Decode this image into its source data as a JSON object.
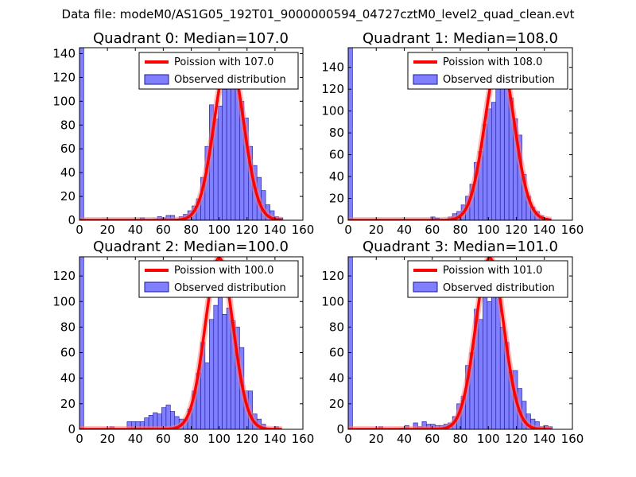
{
  "figure": {
    "suptitle": "Data file: modeM0/AS1G05_192T01_9000000594_04727cztM0_level2_quad_clean.evt",
    "colors": {
      "bar_fill": "#7f7fff",
      "bar_edge": "#1a1a99",
      "curve": "#ff0000",
      "curve_glow": "#ff8080",
      "axes": "#000000"
    }
  },
  "chart_data": [
    {
      "type": "bar+line",
      "title": "Quadrant 0: Median=107.0",
      "xlabel": "",
      "ylabel": "",
      "xlim": [
        0,
        160
      ],
      "ylim": [
        0,
        145
      ],
      "xticks": [
        0,
        20,
        40,
        60,
        80,
        100,
        120,
        140,
        160
      ],
      "xtick_labels": [
        "0",
        "20",
        "40",
        "60",
        "80",
        "100",
        "120",
        "140",
        "160"
      ],
      "yticks": [
        0,
        20,
        40,
        60,
        80,
        100,
        120,
        140
      ],
      "ytick_labels": [
        "0",
        "20",
        "40",
        "60",
        "80",
        "100",
        "120",
        "140"
      ],
      "legend_position": "top-right",
      "legend": [
        "Poission with 107.0",
        "Observed distribution"
      ],
      "poisson_mean": 107.0,
      "poisson_peak": 139,
      "bin_width": 3.1,
      "bins": [
        {
          "x": 0,
          "y": 145
        },
        {
          "x": 43.4,
          "y": 2
        },
        {
          "x": 52.7,
          "y": 1
        },
        {
          "x": 55.8,
          "y": 3
        },
        {
          "x": 58.9,
          "y": 2
        },
        {
          "x": 62.0,
          "y": 4
        },
        {
          "x": 65.1,
          "y": 4
        },
        {
          "x": 71.3,
          "y": 3
        },
        {
          "x": 74.4,
          "y": 5
        },
        {
          "x": 77.5,
          "y": 8
        },
        {
          "x": 80.6,
          "y": 12
        },
        {
          "x": 83.7,
          "y": 18
        },
        {
          "x": 86.8,
          "y": 36
        },
        {
          "x": 89.9,
          "y": 62
        },
        {
          "x": 93.0,
          "y": 97
        },
        {
          "x": 96.1,
          "y": 85
        },
        {
          "x": 99.2,
          "y": 96
        },
        {
          "x": 102.3,
          "y": 110
        },
        {
          "x": 105.4,
          "y": 122
        },
        {
          "x": 108.5,
          "y": 128
        },
        {
          "x": 111.6,
          "y": 127
        },
        {
          "x": 114.7,
          "y": 100
        },
        {
          "x": 117.8,
          "y": 86
        },
        {
          "x": 120.9,
          "y": 62
        },
        {
          "x": 124.0,
          "y": 46
        },
        {
          "x": 127.1,
          "y": 36
        },
        {
          "x": 130.2,
          "y": 25
        },
        {
          "x": 133.3,
          "y": 13
        },
        {
          "x": 136.4,
          "y": 8
        },
        {
          "x": 139.5,
          "y": 3
        },
        {
          "x": 142.6,
          "y": 2
        }
      ]
    },
    {
      "type": "bar+line",
      "title": "Quadrant 1: Median=108.0",
      "xlabel": "",
      "ylabel": "",
      "xlim": [
        0,
        160
      ],
      "ylim": [
        0,
        158
      ],
      "xticks": [
        0,
        20,
        40,
        60,
        80,
        100,
        120,
        140,
        160
      ],
      "xtick_labels": [
        "0",
        "20",
        "40",
        "60",
        "80",
        "100",
        "120",
        "140",
        "160"
      ],
      "yticks": [
        0,
        20,
        40,
        60,
        80,
        100,
        120,
        140
      ],
      "ytick_labels": [
        "0",
        "20",
        "40",
        "60",
        "80",
        "100",
        "120",
        "140"
      ],
      "legend_position": "top-right",
      "legend": [
        "Poission with 108.0",
        "Observed distribution"
      ],
      "poisson_mean": 108.0,
      "poisson_peak": 150,
      "bin_width": 3.1,
      "bins": [
        {
          "x": 0,
          "y": 158
        },
        {
          "x": 58.9,
          "y": 3
        },
        {
          "x": 62.0,
          "y": 2
        },
        {
          "x": 71.3,
          "y": 3
        },
        {
          "x": 74.4,
          "y": 6
        },
        {
          "x": 77.5,
          "y": 8
        },
        {
          "x": 80.6,
          "y": 14
        },
        {
          "x": 83.7,
          "y": 22
        },
        {
          "x": 86.8,
          "y": 33
        },
        {
          "x": 89.9,
          "y": 53
        },
        {
          "x": 93.0,
          "y": 63
        },
        {
          "x": 96.1,
          "y": 88
        },
        {
          "x": 99.2,
          "y": 102
        },
        {
          "x": 102.3,
          "y": 108
        },
        {
          "x": 105.4,
          "y": 125
        },
        {
          "x": 108.5,
          "y": 148
        },
        {
          "x": 111.6,
          "y": 122
        },
        {
          "x": 114.7,
          "y": 112
        },
        {
          "x": 117.8,
          "y": 93
        },
        {
          "x": 120.9,
          "y": 78
        },
        {
          "x": 124.0,
          "y": 42
        },
        {
          "x": 127.1,
          "y": 22
        },
        {
          "x": 130.2,
          "y": 12
        },
        {
          "x": 133.3,
          "y": 8
        },
        {
          "x": 136.4,
          "y": 4
        },
        {
          "x": 139.5,
          "y": 2
        }
      ]
    },
    {
      "type": "bar+line",
      "title": "Quadrant 2: Median=100.0",
      "xlabel": "",
      "ylabel": "",
      "xlim": [
        0,
        160
      ],
      "ylim": [
        0,
        135
      ],
      "xticks": [
        0,
        20,
        40,
        60,
        80,
        100,
        120,
        140,
        160
      ],
      "xtick_labels": [
        "0",
        "20",
        "40",
        "60",
        "80",
        "100",
        "120",
        "140",
        "160"
      ],
      "yticks": [
        0,
        20,
        40,
        60,
        80,
        100,
        120
      ],
      "ytick_labels": [
        "0",
        "20",
        "40",
        "60",
        "80",
        "100",
        "120"
      ],
      "legend_position": "top-right",
      "legend": [
        "Poission with 100.0",
        "Observed distribution"
      ],
      "poisson_mean": 100.0,
      "poisson_peak": 134,
      "bin_width": 3.1,
      "bins": [
        {
          "x": 0,
          "y": 135
        },
        {
          "x": 21.7,
          "y": 2
        },
        {
          "x": 34.1,
          "y": 6
        },
        {
          "x": 37.2,
          "y": 6
        },
        {
          "x": 40.3,
          "y": 6
        },
        {
          "x": 43.4,
          "y": 6
        },
        {
          "x": 46.5,
          "y": 9
        },
        {
          "x": 49.6,
          "y": 11
        },
        {
          "x": 52.7,
          "y": 13
        },
        {
          "x": 55.8,
          "y": 12
        },
        {
          "x": 58.9,
          "y": 17
        },
        {
          "x": 62.0,
          "y": 19
        },
        {
          "x": 65.1,
          "y": 14
        },
        {
          "x": 68.2,
          "y": 10
        },
        {
          "x": 71.3,
          "y": 8
        },
        {
          "x": 74.4,
          "y": 8
        },
        {
          "x": 77.5,
          "y": 16
        },
        {
          "x": 80.6,
          "y": 30
        },
        {
          "x": 83.7,
          "y": 44
        },
        {
          "x": 86.8,
          "y": 68
        },
        {
          "x": 89.9,
          "y": 52
        },
        {
          "x": 93.0,
          "y": 86
        },
        {
          "x": 96.1,
          "y": 97
        },
        {
          "x": 99.2,
          "y": 106
        },
        {
          "x": 102.3,
          "y": 90
        },
        {
          "x": 105.4,
          "y": 95
        },
        {
          "x": 108.5,
          "y": 85
        },
        {
          "x": 111.6,
          "y": 80
        },
        {
          "x": 114.7,
          "y": 64
        },
        {
          "x": 117.8,
          "y": 30
        },
        {
          "x": 120.9,
          "y": 30
        },
        {
          "x": 124.0,
          "y": 12
        },
        {
          "x": 127.1,
          "y": 8
        },
        {
          "x": 130.2,
          "y": 4
        },
        {
          "x": 139.5,
          "y": 2
        }
      ]
    },
    {
      "type": "bar+line",
      "title": "Quadrant 3: Median=101.0",
      "xlabel": "",
      "ylabel": "",
      "xlim": [
        0,
        160
      ],
      "ylim": [
        0,
        135
      ],
      "xticks": [
        0,
        20,
        40,
        60,
        80,
        100,
        120,
        140,
        160
      ],
      "xtick_labels": [
        "0",
        "20",
        "40",
        "60",
        "80",
        "100",
        "120",
        "140",
        "160"
      ],
      "yticks": [
        0,
        20,
        40,
        60,
        80,
        100,
        120
      ],
      "ytick_labels": [
        "0",
        "20",
        "40",
        "60",
        "80",
        "100",
        "120"
      ],
      "legend_position": "top-right",
      "legend": [
        "Poission with 101.0",
        "Observed distribution"
      ],
      "poisson_mean": 101.0,
      "poisson_peak": 134,
      "bin_width": 3.1,
      "bins": [
        {
          "x": 0,
          "y": 135
        },
        {
          "x": 21.7,
          "y": 2
        },
        {
          "x": 37.2,
          "y": 1
        },
        {
          "x": 40.3,
          "y": 3
        },
        {
          "x": 46.5,
          "y": 5
        },
        {
          "x": 49.6,
          "y": 2
        },
        {
          "x": 52.7,
          "y": 6
        },
        {
          "x": 55.8,
          "y": 4
        },
        {
          "x": 58.9,
          "y": 4
        },
        {
          "x": 62.0,
          "y": 3
        },
        {
          "x": 65.1,
          "y": 3
        },
        {
          "x": 68.2,
          "y": 4
        },
        {
          "x": 71.3,
          "y": 5
        },
        {
          "x": 74.4,
          "y": 10
        },
        {
          "x": 77.5,
          "y": 20
        },
        {
          "x": 80.6,
          "y": 26
        },
        {
          "x": 83.7,
          "y": 50
        },
        {
          "x": 86.8,
          "y": 60
        },
        {
          "x": 89.9,
          "y": 94
        },
        {
          "x": 93.0,
          "y": 86
        },
        {
          "x": 96.1,
          "y": 110
        },
        {
          "x": 99.2,
          "y": 100
        },
        {
          "x": 102.3,
          "y": 122
        },
        {
          "x": 105.4,
          "y": 108
        },
        {
          "x": 108.5,
          "y": 80
        },
        {
          "x": 111.6,
          "y": 68
        },
        {
          "x": 114.7,
          "y": 46
        },
        {
          "x": 117.8,
          "y": 46
        },
        {
          "x": 120.9,
          "y": 32
        },
        {
          "x": 124.0,
          "y": 22
        },
        {
          "x": 127.1,
          "y": 12
        },
        {
          "x": 130.2,
          "y": 8
        },
        {
          "x": 133.3,
          "y": 6
        },
        {
          "x": 136.4,
          "y": 2
        },
        {
          "x": 139.5,
          "y": 3
        },
        {
          "x": 142.6,
          "y": 2
        }
      ]
    }
  ]
}
